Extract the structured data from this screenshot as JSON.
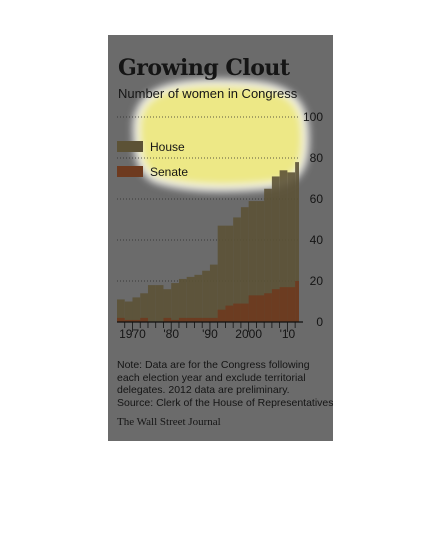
{
  "header": {
    "title": "Growing Clout",
    "subtitle": "Number of women in Congress"
  },
  "note": [
    "Note: Data are for the Congress following",
    "each election year and exclude territorial",
    "delegates. 2012 data are preliminary.",
    "Source: Clerk of the House of Representatives"
  ],
  "source": "The Wall Street Journal",
  "colors": {
    "house": "#5c5236",
    "senate": "#6e3a1f",
    "highlight": "#f4ef88"
  },
  "chart_data": {
    "type": "area",
    "stacked": false,
    "title": "Growing Clout",
    "subtitle": "Number of women in Congress",
    "x": [
      1966,
      1968,
      1970,
      1972,
      1974,
      1976,
      1978,
      1980,
      1982,
      1984,
      1986,
      1988,
      1990,
      1992,
      1994,
      1996,
      1998,
      2000,
      2002,
      2004,
      2006,
      2008,
      2010,
      2012
    ],
    "x_ticks": [
      {
        "value": 1970,
        "label": "1970"
      },
      {
        "value": 1980,
        "label": "'80"
      },
      {
        "value": 1990,
        "label": "'90"
      },
      {
        "value": 2000,
        "label": "2000"
      },
      {
        "value": 2010,
        "label": "'10"
      }
    ],
    "xlim": [
      1966,
      2013
    ],
    "ylim": [
      0,
      100
    ],
    "y_ticks": [
      0,
      20,
      40,
      60,
      80,
      100
    ],
    "grid": true,
    "legend_position": "top-left",
    "series": [
      {
        "name": "House",
        "values": [
          11,
          10,
          12,
          14,
          18,
          18,
          16,
          19,
          21,
          22,
          23,
          25,
          28,
          47,
          47,
          51,
          56,
          59,
          59,
          65,
          71,
          74,
          73,
          78
        ]
      },
      {
        "name": "Senate",
        "values": [
          2,
          1,
          1,
          2,
          0,
          0,
          2,
          1,
          2,
          2,
          2,
          2,
          2,
          6,
          8,
          9,
          9,
          13,
          13,
          14,
          16,
          17,
          17,
          20
        ]
      }
    ]
  }
}
